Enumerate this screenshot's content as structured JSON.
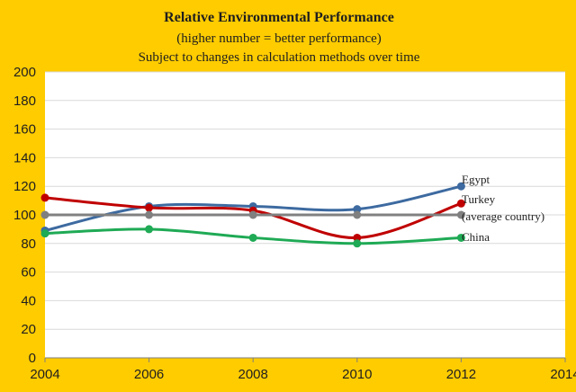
{
  "chart_data": {
    "type": "line",
    "title": "Relative Environmental Performance",
    "subtitle": "(higher number = better performance)",
    "subtitle2": "Subject to changes in calculation methods over time",
    "xlabel": "",
    "ylabel": "",
    "xlim": [
      2004,
      2014
    ],
    "ylim": [
      0,
      200
    ],
    "x_ticks": [
      2004,
      2006,
      2008,
      2010,
      2012,
      2014
    ],
    "y_ticks": [
      0,
      20,
      40,
      60,
      80,
      100,
      120,
      140,
      160,
      180,
      200
    ],
    "grid": "horizontal",
    "x": [
      2004,
      2006,
      2008,
      2010,
      2012
    ],
    "series": [
      {
        "name": "Egypt",
        "color": "#3D6AA0",
        "values": [
          89,
          106,
          106,
          104,
          120
        ]
      },
      {
        "name": "Turkey",
        "color": "#C00000",
        "values": [
          112,
          105,
          103,
          84,
          108
        ]
      },
      {
        "name": "(average country)",
        "color": "#808080",
        "values": [
          100,
          100,
          100,
          100,
          100
        ]
      },
      {
        "name": "China",
        "color": "#1FAA55",
        "values": [
          87,
          90,
          84,
          80,
          84
        ]
      }
    ]
  }
}
